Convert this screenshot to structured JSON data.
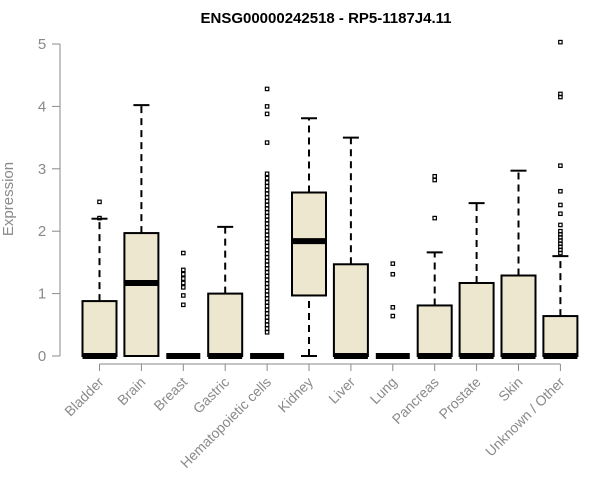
{
  "chart_data": {
    "type": "boxplot",
    "title": "ENSG00000242518 - RP5-1187J4.11",
    "xlabel": "",
    "ylabel": "Expression",
    "ylim": [
      0,
      5
    ],
    "yticks": [
      0,
      1,
      2,
      3,
      4,
      5
    ],
    "grid": false,
    "box_fill": "#ede7cf",
    "categories": [
      "Bladder",
      "Brain",
      "Breast",
      "Gastric",
      "Hematopoietic cells",
      "Kidney",
      "Liver",
      "Lung",
      "Pancreas",
      "Prostate",
      "Skin",
      "Unknown / Other"
    ],
    "boxes": [
      {
        "q1": 0,
        "median": 0,
        "q3": 0.88,
        "whisker_low": 0,
        "whisker_high": 2.2,
        "outliers": [
          2.47,
          2.21
        ]
      },
      {
        "q1": 0,
        "median": 1.17,
        "q3": 1.97,
        "whisker_low": 0,
        "whisker_high": 4.02,
        "outliers": []
      },
      {
        "q1": 0,
        "median": 0,
        "q3": 0,
        "whisker_low": 0,
        "whisker_high": 0,
        "outliers": [
          1.65,
          1.38,
          1.31,
          1.24,
          1.17,
          1.1,
          0.97,
          0.82
        ]
      },
      {
        "q1": 0,
        "median": 0,
        "q3": 1.0,
        "whisker_low": 0,
        "whisker_high": 2.07,
        "outliers": []
      },
      {
        "q1": 0,
        "median": 0,
        "q3": 0,
        "whisker_low": 0,
        "whisker_high": 0,
        "outliers": [
          4.28,
          4.0,
          3.88,
          3.42,
          2.92,
          2.85,
          2.78,
          2.72,
          2.66,
          2.6,
          2.54,
          2.48,
          2.42,
          2.36,
          2.3,
          2.24,
          2.18,
          2.12,
          2.06,
          2.0,
          1.94,
          1.88,
          1.82,
          1.76,
          1.7,
          1.64,
          1.58,
          1.52,
          1.46,
          1.4,
          1.34,
          1.28,
          1.22,
          1.16,
          1.1,
          1.04,
          0.98,
          0.92,
          0.86,
          0.8,
          0.74,
          0.68,
          0.62,
          0.56,
          0.5,
          0.44,
          0.38
        ]
      },
      {
        "q1": 0.97,
        "median": 1.84,
        "q3": 2.62,
        "whisker_low": 0,
        "whisker_high": 3.81,
        "outliers": []
      },
      {
        "q1": 0,
        "median": 0,
        "q3": 1.47,
        "whisker_low": 0,
        "whisker_high": 3.5,
        "outliers": []
      },
      {
        "q1": 0,
        "median": 0,
        "q3": 0,
        "whisker_low": 0,
        "whisker_high": 0,
        "outliers": [
          1.48,
          1.31,
          0.78,
          0.64
        ]
      },
      {
        "q1": 0,
        "median": 0,
        "q3": 0.81,
        "whisker_low": 0,
        "whisker_high": 1.66,
        "outliers": [
          2.88,
          2.82,
          2.21
        ]
      },
      {
        "q1": 0,
        "median": 0,
        "q3": 1.17,
        "whisker_low": 0,
        "whisker_high": 2.45,
        "outliers": []
      },
      {
        "q1": 0,
        "median": 0,
        "q3": 1.29,
        "whisker_low": 0,
        "whisker_high": 2.97,
        "outliers": []
      },
      {
        "q1": 0,
        "median": 0,
        "q3": 0.64,
        "whisker_low": 0,
        "whisker_high": 1.6,
        "outliers": [
          5.03,
          4.2,
          4.15,
          3.05,
          2.64,
          2.42,
          2.28,
          2.1,
          2.0,
          1.95,
          1.9,
          1.85,
          1.8,
          1.75,
          1.7,
          1.65
        ]
      }
    ]
  }
}
